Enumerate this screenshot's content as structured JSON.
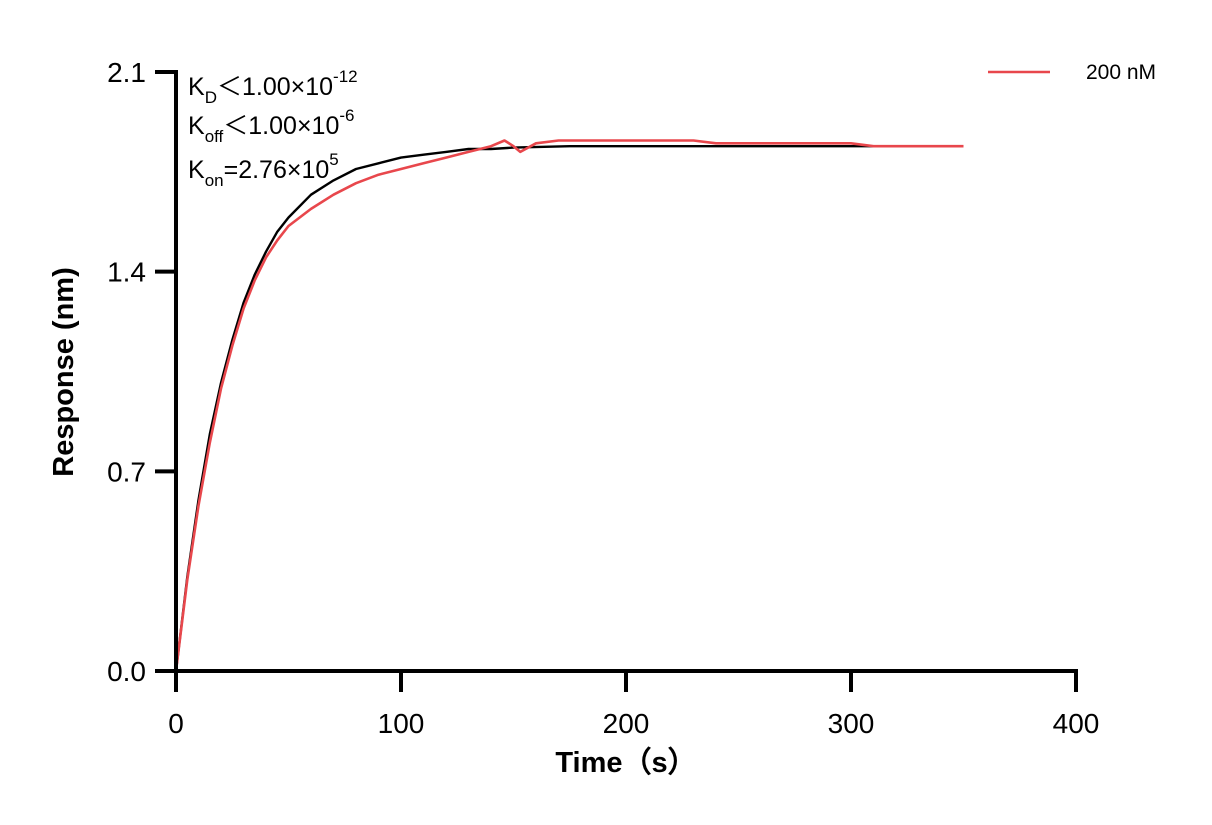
{
  "chart_data": {
    "type": "line",
    "xlabel": "Time（s）",
    "ylabel": "Response (nm)",
    "xlim": [
      0,
      400
    ],
    "ylim": [
      0,
      2.1
    ],
    "x_ticks": [
      0,
      100,
      200,
      300,
      400
    ],
    "x_tick_labels": [
      "0",
      "100",
      "200",
      "300",
      "400"
    ],
    "y_ticks": [
      0,
      0.7,
      1.4,
      2.1
    ],
    "y_tick_labels": [
      "0.0",
      "0.7",
      "1.4",
      "2.1"
    ],
    "grid": false,
    "legend": {
      "placement": "top-right",
      "entries": [
        "200 nM"
      ]
    },
    "annotations": [
      {
        "main": "K",
        "sub": "D",
        "rest": "＜1.00×10",
        "sup": "-12"
      },
      {
        "main": "K",
        "sub": "off",
        "rest": "＜1.00×10",
        "sup": "-6"
      },
      {
        "main": "K",
        "sub": "on",
        "rest": "=2.76×10",
        "sup": "5"
      }
    ],
    "series": [
      {
        "name": "200 nM",
        "color": "#e8474c",
        "x": [
          0,
          5,
          10,
          15,
          20,
          25,
          30,
          35,
          40,
          45,
          50,
          60,
          70,
          80,
          90,
          100,
          110,
          120,
          130,
          140,
          146,
          150,
          153,
          160,
          170,
          180,
          190,
          200,
          210,
          220,
          230,
          240,
          250,
          260,
          270,
          280,
          290,
          300,
          310,
          320,
          330,
          340,
          350
        ],
        "y": [
          0.0,
          0.32,
          0.58,
          0.8,
          0.99,
          1.14,
          1.27,
          1.37,
          1.45,
          1.51,
          1.56,
          1.62,
          1.67,
          1.71,
          1.74,
          1.76,
          1.78,
          1.8,
          1.82,
          1.84,
          1.86,
          1.84,
          1.82,
          1.85,
          1.86,
          1.86,
          1.86,
          1.86,
          1.86,
          1.86,
          1.86,
          1.85,
          1.85,
          1.85,
          1.85,
          1.85,
          1.85,
          1.85,
          1.84,
          1.84,
          1.84,
          1.84,
          1.84
        ]
      },
      {
        "type": "fit",
        "color": "#000000",
        "x": [
          0,
          5,
          10,
          15,
          20,
          25,
          30,
          35,
          40,
          45,
          50,
          60,
          70,
          80,
          90,
          100,
          110,
          120,
          130,
          140,
          150,
          175,
          200,
          250,
          300,
          350
        ],
        "y": [
          0.0,
          0.33,
          0.6,
          0.83,
          1.01,
          1.16,
          1.29,
          1.39,
          1.47,
          1.54,
          1.59,
          1.67,
          1.72,
          1.76,
          1.78,
          1.8,
          1.81,
          1.82,
          1.83,
          1.83,
          1.835,
          1.84,
          1.84,
          1.84,
          1.84,
          1.84
        ]
      }
    ]
  }
}
